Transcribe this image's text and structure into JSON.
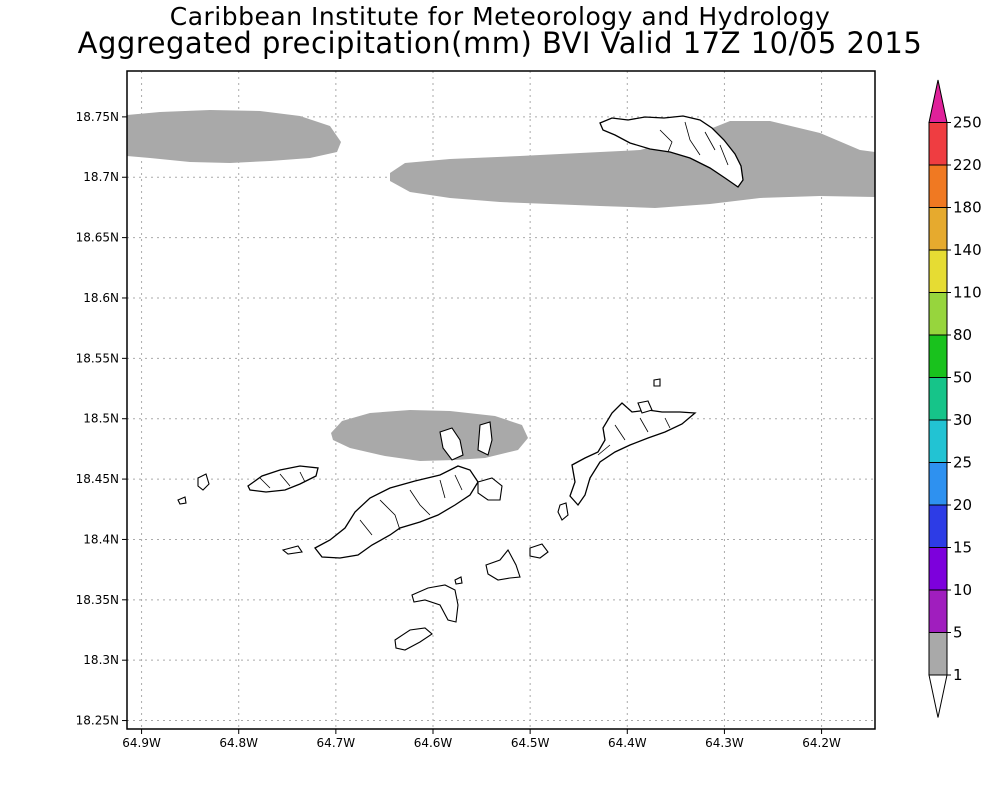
{
  "title": {
    "line1": "Caribbean Institute for Meteorology and Hydrology",
    "line2": "Aggregated precipitation(mm) BVI Valid 17Z 10/05 2015"
  },
  "map": {
    "lon_range": [
      -64.915,
      -64.145
    ],
    "lat_range": [
      18.243,
      18.788
    ],
    "lat_ticks": [
      "18.25N",
      "18.3N",
      "18.35N",
      "18.4N",
      "18.45N",
      "18.5N",
      "18.55N",
      "18.6N",
      "18.65N",
      "18.7N",
      "18.75N"
    ],
    "lon_ticks": [
      "64.9W",
      "64.8W",
      "64.7W",
      "64.6W",
      "64.5W",
      "64.4W",
      "64.3W",
      "64.2W"
    ],
    "grid": true,
    "precip_color": "#a9a9a9",
    "land_fill": "#ffffff",
    "land_outline": "#000000"
  },
  "colorbar": {
    "labels": [
      "1",
      "5",
      "10",
      "15",
      "20",
      "25",
      "30",
      "50",
      "80",
      "110",
      "140",
      "180",
      "220",
      "250"
    ],
    "colors": [
      "#ffffff",
      "#a9a9a9",
      "#a01ebe",
      "#7d00dc",
      "#2d3ce6",
      "#2e91f0",
      "#22c3d3",
      "#16c489",
      "#19c21d",
      "#97d53d",
      "#e6dc33",
      "#e6aa2e",
      "#f07922",
      "#ef3d41",
      "#e0219a"
    ],
    "unit": "mm"
  }
}
